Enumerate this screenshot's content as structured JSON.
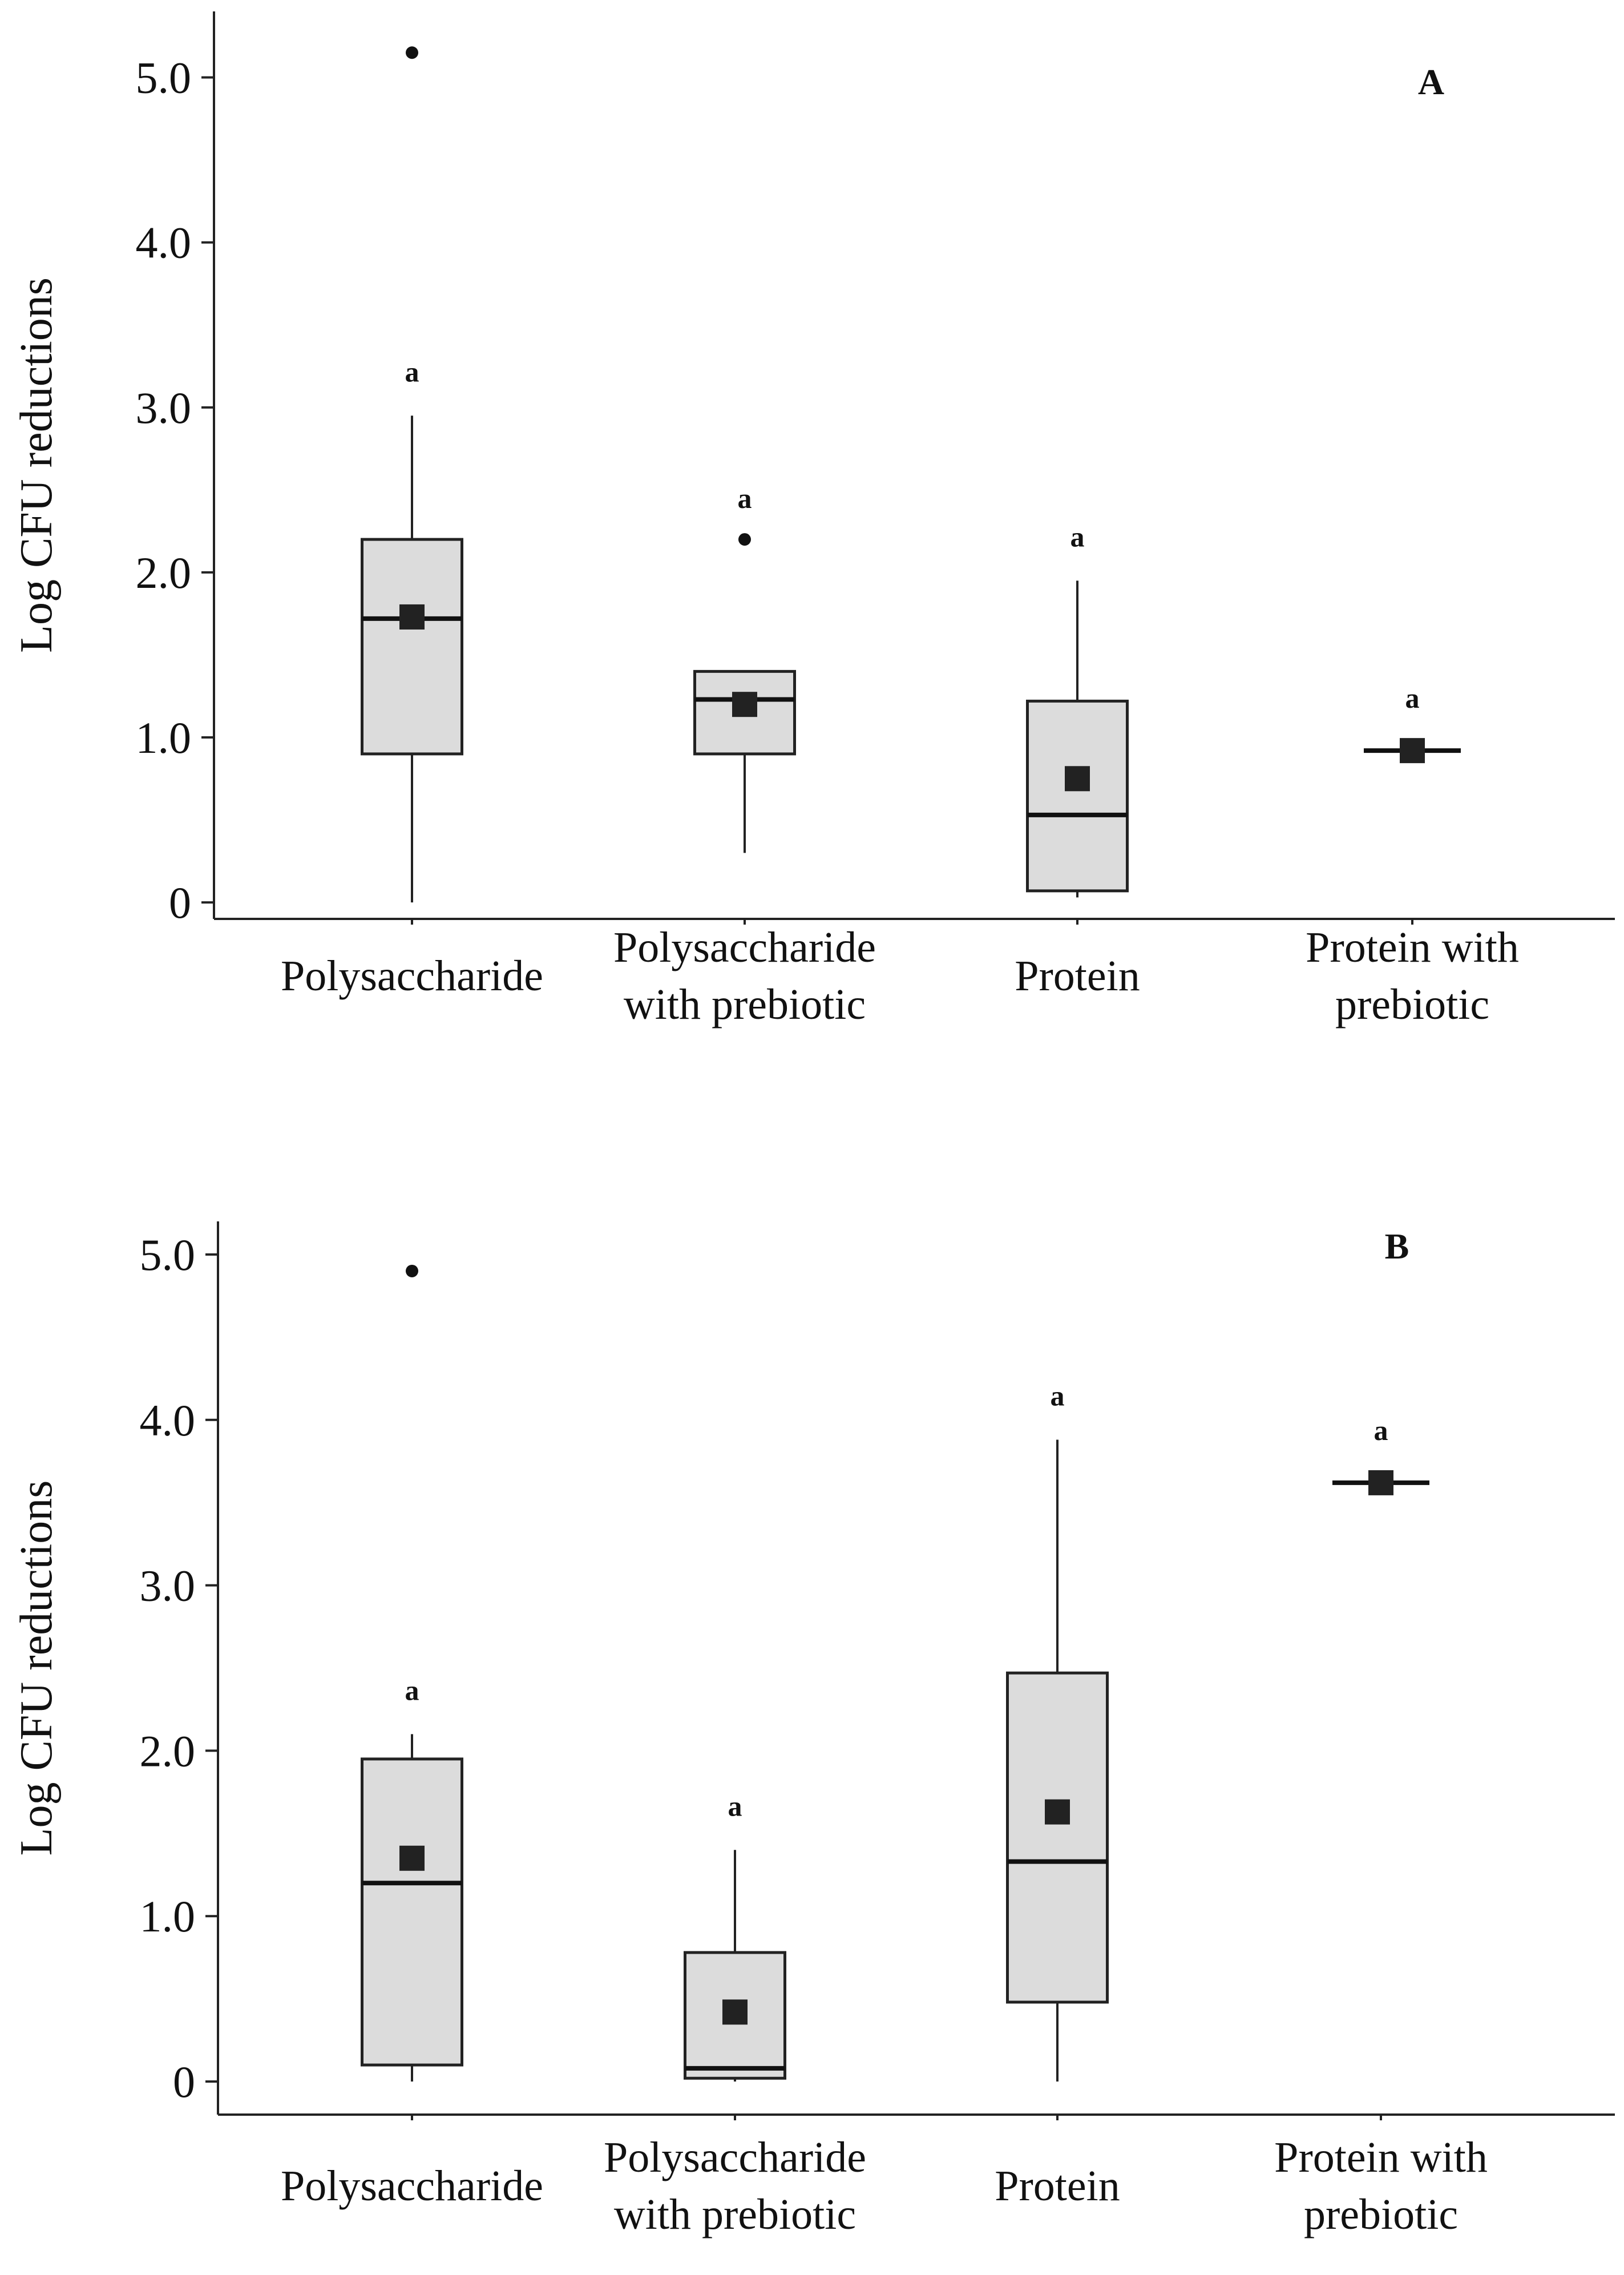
{
  "chart_data": [
    {
      "type": "box",
      "panel_label": "A",
      "ylabel": "Log CFU reductions",
      "xlabel": "",
      "ylim": [
        -0.1,
        5.4
      ],
      "yticks": [
        0,
        1.0,
        2.0,
        3.0,
        4.0,
        5.0
      ],
      "ytick_labels": [
        "0",
        "1.0",
        "2.0",
        "3.0",
        "4.0",
        "5.0"
      ],
      "categories": [
        [
          "Polysaccharide"
        ],
        [
          "Polysaccharide",
          "with prebiotic"
        ],
        [
          "Protein"
        ],
        [
          "Protein with",
          "prebiotic"
        ]
      ],
      "boxes": [
        {
          "name": "Polysaccharide",
          "whisker_low": 0.0,
          "q1": 0.9,
          "median": 1.72,
          "q3": 2.2,
          "whisker_high": 2.95,
          "mean": 1.73,
          "outliers": [
            5.15
          ],
          "letter": "a"
        },
        {
          "name": "Polysaccharide with prebiotic",
          "whisker_low": 0.3,
          "q1": 0.9,
          "median": 1.23,
          "q3": 1.4,
          "whisker_high": 1.4,
          "mean": 1.2,
          "outliers": [
            2.2
          ],
          "letter": "a"
        },
        {
          "name": "Protein",
          "whisker_low": 0.03,
          "q1": 0.07,
          "median": 0.53,
          "q3": 1.22,
          "whisker_high": 1.95,
          "mean": 0.75,
          "outliers": [],
          "letter": "a"
        },
        {
          "name": "Protein with prebiotic",
          "whisker_low": 0.92,
          "q1": 0.92,
          "median": 0.92,
          "q3": 0.92,
          "whisker_high": 0.92,
          "mean": 0.92,
          "outliers": [],
          "letter": "a"
        }
      ]
    },
    {
      "type": "box",
      "panel_label": "B",
      "ylabel": "Log CFU reductions",
      "xlabel": "",
      "ylim": [
        -0.2,
        5.2
      ],
      "yticks": [
        0,
        1.0,
        2.0,
        3.0,
        4.0,
        5.0
      ],
      "ytick_labels": [
        "0",
        "1.0",
        "2.0",
        "3.0",
        "4.0",
        "5.0"
      ],
      "categories": [
        [
          "Polysaccharide"
        ],
        [
          "Polysaccharide",
          "with prebiotic"
        ],
        [
          "Protein"
        ],
        [
          "Protein with",
          "prebiotic"
        ]
      ],
      "boxes": [
        {
          "name": "Polysaccharide",
          "whisker_low": 0.0,
          "q1": 0.1,
          "median": 1.2,
          "q3": 1.95,
          "whisker_high": 2.1,
          "mean": 1.35,
          "outliers": [
            4.9
          ],
          "letter": "a"
        },
        {
          "name": "Polysaccharide with prebiotic",
          "whisker_low": 0.0,
          "q1": 0.02,
          "median": 0.08,
          "q3": 0.78,
          "whisker_high": 1.4,
          "mean": 0.42,
          "outliers": [],
          "letter": "a"
        },
        {
          "name": "Protein",
          "whisker_low": 0.0,
          "q1": 0.48,
          "median": 1.33,
          "q3": 2.47,
          "whisker_high": 3.88,
          "mean": 1.63,
          "outliers": [],
          "letter": "a"
        },
        {
          "name": "Protein with",
          "whisker_low": 3.62,
          "q1": 3.62,
          "median": 3.62,
          "q3": 3.62,
          "whisker_high": 3.62,
          "mean": 3.62,
          "outliers": [],
          "letter": "a"
        }
      ]
    }
  ]
}
